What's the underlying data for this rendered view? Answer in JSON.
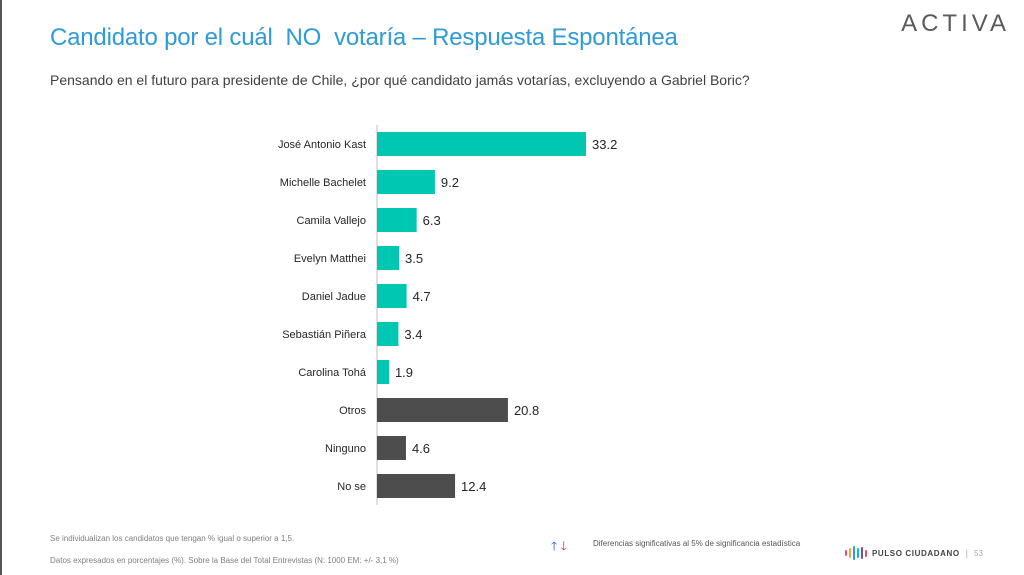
{
  "header": {
    "title": "Candidato por el cuál  NO  votaría – Respuesta Espontánea",
    "subtitle": "Pensando en el futuro para presidente de Chile, ¿por qué candidato jamás votarías, excluyendo a Gabriel Boric?",
    "logo": "ACTIVA"
  },
  "chart_data": {
    "type": "bar",
    "orientation": "horizontal",
    "categories": [
      "José Antonio Kast",
      "Michelle Bachelet",
      "Camila Vallejo",
      "Evelyn Matthei",
      "Daniel Jadue",
      "Sebastián Piñera",
      "Carolina Tohá",
      "Otros",
      "Ninguno",
      "No se"
    ],
    "values": [
      33.2,
      9.2,
      6.3,
      3.5,
      4.7,
      3.4,
      1.9,
      20.8,
      4.6,
      12.4
    ],
    "data_labels": [
      "33.2",
      "9.2",
      "6.3",
      "3.5",
      "4.7",
      "3.4",
      "1.9",
      "20.8",
      "4.6",
      "12.4"
    ],
    "bar_colors": [
      "#00C7B1",
      "#00C7B1",
      "#00C7B1",
      "#00C7B1",
      "#00C7B1",
      "#00C7B1",
      "#00C7B1",
      "#4D4D4D",
      "#4D4D4D",
      "#4D4D4D"
    ],
    "xlim": [
      0,
      35
    ],
    "grid": false,
    "axis_line_color": "#BFBFBF"
  },
  "footer": {
    "note1": "Se individualizan los candidatos que tengan % igual o superior a 1,5.",
    "note2": "Datos expresados en porcentajes (%). Sobre la Base del Total Entrevistas (N: 1000  EM: +/- 3,1 %)",
    "arrow_up": "🡑",
    "arrow_down": "🡓",
    "legend": "Diferencias  significativas  al 5% de significancia estadística",
    "brand": "PULSO CIUDADANO",
    "separator": "|",
    "page": "53",
    "brand_bar_colors": [
      "#E8486C",
      "#F4A23C",
      "#2F9BD6",
      "#00C7B1",
      "#7B4FA0",
      "#E8486C"
    ]
  }
}
